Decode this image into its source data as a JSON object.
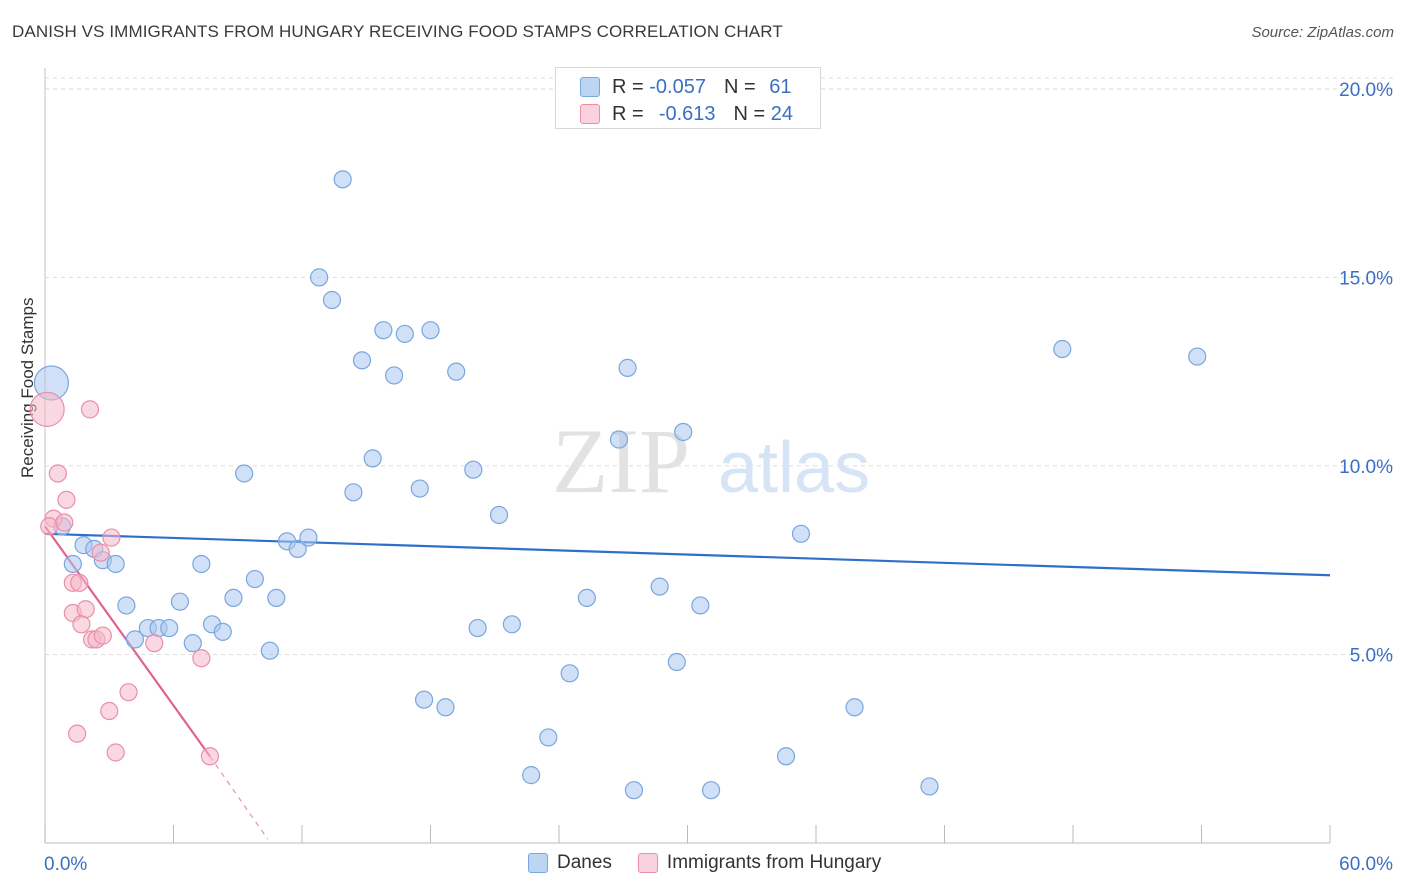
{
  "title": "DANISH VS IMMIGRANTS FROM HUNGARY RECEIVING FOOD STAMPS CORRELATION CHART",
  "source": "Source: ZipAtlas.com",
  "watermark": {
    "zip": "ZIP",
    "atlas": "atlas"
  },
  "legend_box": {
    "rows": [
      {
        "r_label": "R =",
        "r_value": "-0.057",
        "n_label": "N =",
        "n_value": "61",
        "color": "#a9c7ee"
      },
      {
        "r_label": "R =",
        "r_value": "-0.613",
        "n_label": "N =",
        "n_value": "24",
        "color": "#f5b8c9"
      }
    ]
  },
  "chart_data": {
    "type": "scatter",
    "title": "DANISH VS IMMIGRANTS FROM HUNGARY RECEIVING FOOD STAMPS CORRELATION CHART",
    "xlabel": "",
    "ylabel": "Receiving Food Stamps",
    "xlim": [
      0,
      60
    ],
    "ylim": [
      0,
      20.5
    ],
    "x_tick_labels": [
      "0.0%",
      "60.0%"
    ],
    "y_ticks": [
      5,
      10,
      15,
      20
    ],
    "y_tick_labels": [
      "5.0%",
      "10.0%",
      "15.0%",
      "20.0%"
    ],
    "grid": true,
    "legend_position": "bottom",
    "series": [
      {
        "name": "Danes",
        "color": "#a9c7ee",
        "stroke": "#7aa6de",
        "line_color": "#2f6fcb",
        "trend": {
          "x0": 0,
          "y0": 8.2,
          "x1": 60,
          "y1": 7.1
        },
        "points": [
          [
            0.3,
            12.2,
            2
          ],
          [
            0.8,
            8.4,
            1
          ],
          [
            1.3,
            7.4,
            1
          ],
          [
            1.8,
            7.9,
            1
          ],
          [
            2.3,
            7.8,
            1
          ],
          [
            2.7,
            7.5,
            1
          ],
          [
            3.3,
            7.4,
            1
          ],
          [
            3.8,
            6.3,
            1
          ],
          [
            4.2,
            5.4,
            1
          ],
          [
            4.8,
            5.7,
            1
          ],
          [
            5.3,
            5.7,
            1
          ],
          [
            5.8,
            5.7,
            1
          ],
          [
            6.3,
            6.4,
            1
          ],
          [
            6.9,
            5.3,
            1
          ],
          [
            7.3,
            7.4,
            1
          ],
          [
            7.8,
            5.8,
            1
          ],
          [
            8.3,
            5.6,
            1
          ],
          [
            8.8,
            6.5,
            1
          ],
          [
            9.3,
            9.8,
            1
          ],
          [
            9.8,
            7.0,
            1
          ],
          [
            10.5,
            5.1,
            1
          ],
          [
            10.8,
            6.5,
            1
          ],
          [
            11.3,
            8.0,
            1
          ],
          [
            11.8,
            7.8,
            1
          ],
          [
            12.3,
            8.1,
            1
          ],
          [
            12.8,
            15.0,
            1
          ],
          [
            13.4,
            14.4,
            1
          ],
          [
            13.9,
            17.6,
            1
          ],
          [
            14.4,
            9.3,
            1
          ],
          [
            14.8,
            12.8,
            1
          ],
          [
            15.3,
            10.2,
            1
          ],
          [
            15.8,
            13.6,
            1
          ],
          [
            16.3,
            12.4,
            1
          ],
          [
            16.8,
            13.5,
            1
          ],
          [
            17.5,
            9.4,
            1
          ],
          [
            17.7,
            3.8,
            1
          ],
          [
            18.0,
            13.6,
            1
          ],
          [
            18.7,
            3.6,
            1
          ],
          [
            19.2,
            12.5,
            1
          ],
          [
            20.0,
            9.9,
            1
          ],
          [
            20.2,
            5.7,
            1
          ],
          [
            21.2,
            8.7,
            1
          ],
          [
            21.8,
            5.8,
            1
          ],
          [
            22.7,
            1.8,
            1
          ],
          [
            23.5,
            2.8,
            1
          ],
          [
            24.5,
            4.5,
            1
          ],
          [
            25.3,
            6.5,
            1
          ],
          [
            26.8,
            10.7,
            1
          ],
          [
            27.2,
            12.6,
            1
          ],
          [
            27.5,
            1.4,
            1
          ],
          [
            28.7,
            6.8,
            1
          ],
          [
            29.5,
            4.8,
            1
          ],
          [
            29.8,
            10.9,
            1
          ],
          [
            30.6,
            6.3,
            1
          ],
          [
            31.1,
            1.4,
            1
          ],
          [
            34.6,
            2.3,
            1
          ],
          [
            35.3,
            8.2,
            1
          ],
          [
            37.8,
            3.6,
            1
          ],
          [
            41.3,
            1.5,
            1
          ],
          [
            47.5,
            13.1,
            1
          ],
          [
            53.8,
            12.9,
            1
          ]
        ]
      },
      {
        "name": "Immigrants from Hungary",
        "color": "#f5b8c9",
        "stroke": "#ea8eaa",
        "line_color": "#e2618d",
        "trend": {
          "x0": 0,
          "y0": 8.4,
          "x1": 7.7,
          "y1": 2.3
        },
        "trend_dashed": {
          "x0": 7.7,
          "y0": 2.3,
          "x1": 10.4,
          "y1": 0.1
        },
        "points": [
          [
            0.1,
            11.5,
            2
          ],
          [
            0.6,
            9.8,
            1
          ],
          [
            0.4,
            8.6,
            1
          ],
          [
            0.2,
            8.4,
            1
          ],
          [
            1.0,
            9.1,
            1
          ],
          [
            0.9,
            8.5,
            1
          ],
          [
            2.1,
            11.5,
            1
          ],
          [
            1.3,
            6.9,
            1
          ],
          [
            1.6,
            6.9,
            1
          ],
          [
            1.3,
            6.1,
            1
          ],
          [
            1.9,
            6.2,
            1
          ],
          [
            1.7,
            5.8,
            1
          ],
          [
            2.6,
            7.7,
            1
          ],
          [
            2.2,
            5.4,
            1
          ],
          [
            2.4,
            5.4,
            1
          ],
          [
            2.7,
            5.5,
            1
          ],
          [
            3.1,
            8.1,
            1
          ],
          [
            3.9,
            4.0,
            1
          ],
          [
            3.0,
            3.5,
            1
          ],
          [
            1.5,
            2.9,
            1
          ],
          [
            3.3,
            2.4,
            1
          ],
          [
            5.1,
            5.3,
            1
          ],
          [
            7.3,
            4.9,
            1
          ],
          [
            7.7,
            2.3,
            1
          ]
        ]
      }
    ]
  }
}
